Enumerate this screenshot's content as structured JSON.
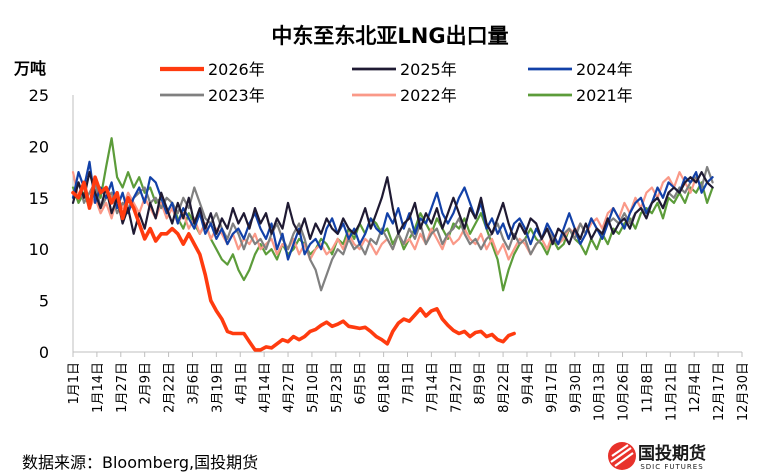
{
  "chart_data": {
    "type": "line",
    "title": "中东至东北亚LNG出口量",
    "ylabel": "万吨",
    "ylim": [
      0,
      25
    ],
    "yticks": [
      0,
      5,
      10,
      15,
      20,
      25
    ],
    "grid": false,
    "legend_position": "top",
    "x_ticks": [
      "1月1日",
      "1月14日",
      "1月27日",
      "2月9日",
      "2月22日",
      "3月6日",
      "3月19日",
      "4月1日",
      "4月14日",
      "4月27日",
      "5月10日",
      "5月23日",
      "6月5日",
      "6月18日",
      "7月1日",
      "7月14日",
      "7月27日",
      "8月9日",
      "8月22日",
      "9月4日",
      "9月17日",
      "9月30日",
      "10月13日",
      "10月26日",
      "11月8日",
      "11月21日",
      "12月4日",
      "12月17日",
      "12月30日"
    ],
    "series": [
      {
        "name": "2026年",
        "color": "#ff3b0f",
        "width": 3.6,
        "x_start_day": 0,
        "x_step_days": 3,
        "values": [
          15.5,
          15,
          16.5,
          14,
          17,
          15.5,
          16,
          14.5,
          15.5,
          13,
          15,
          14,
          12.5,
          11,
          12,
          10.8,
          11.5,
          11.5,
          12,
          11.5,
          10.5,
          11.5,
          10.5,
          9.5,
          7.5,
          5,
          4,
          3.2,
          2,
          1.8,
          1.8,
          1.8,
          1,
          0.2,
          0.2,
          0.5,
          0.4,
          0.8,
          1.2,
          1,
          1.5,
          1.2,
          1.5,
          2,
          2.2,
          2.6,
          2.9,
          2.5,
          2.7,
          3,
          2.5,
          2.4,
          2.3,
          2.4,
          2,
          1.5,
          1.2,
          0.8,
          2,
          2.8,
          3.2,
          3,
          3.6,
          4.2,
          3.5,
          4,
          4.2,
          3.2,
          2.6,
          2.1,
          1.8,
          2,
          1.5,
          1.9,
          2,
          1.5,
          1.7,
          1.2,
          1,
          1.6,
          1.8
        ]
      },
      {
        "name": "2025年",
        "color": "#1f1a33",
        "width": 2.2,
        "x_start_day": 0,
        "x_step_days": 3,
        "values": [
          14.5,
          16.5,
          15,
          17.5,
          15.5,
          14,
          16,
          13.5,
          15,
          12.5,
          14,
          11.5,
          13.5,
          12,
          14.5,
          13,
          15.5,
          14,
          12.5,
          14.5,
          13,
          15,
          12.5,
          14,
          12,
          13.5,
          11.5,
          13,
          12,
          14,
          12.5,
          13.5,
          12,
          14,
          12.5,
          13.5,
          11.5,
          13,
          12,
          14.5,
          12.5,
          11.5,
          13,
          11,
          12.5,
          11.5,
          13,
          12,
          11.5,
          13,
          12,
          11.5,
          12.5,
          14,
          12,
          13.5,
          15,
          17,
          14,
          11.5,
          12.5,
          13,
          14.5,
          12,
          13.5,
          12.5,
          14,
          12,
          13.5,
          15,
          13.5,
          12,
          14,
          13,
          15,
          12.5,
          11.5,
          13,
          14.5,
          12.5,
          11,
          12.5,
          11.5,
          13,
          12.5,
          11,
          12,
          10.5,
          12,
          11.5,
          10.5,
          12,
          11,
          12.5,
          11,
          12,
          11.5,
          13,
          11.5,
          12.5,
          13,
          12,
          13.5,
          14,
          13,
          14.5,
          15,
          14,
          15.5,
          16,
          15.5,
          16.5,
          17,
          16.5,
          17.5,
          16.5,
          16
        ]
      },
      {
        "name": "2024年",
        "color": "#1241a8",
        "width": 2.2,
        "x_start_day": 0,
        "x_step_days": 3,
        "values": [
          15,
          17.5,
          16,
          18.5,
          14.5,
          16,
          15,
          16.5,
          14,
          15.5,
          13.5,
          15,
          16,
          14.5,
          17,
          16.5,
          15,
          13.5,
          14.5,
          12.5,
          14,
          13,
          12,
          13.5,
          11.5,
          12.5,
          11,
          12,
          10.5,
          11.5,
          12,
          11,
          12.5,
          13.5,
          12,
          11,
          12.5,
          10,
          11.5,
          9,
          10.5,
          12,
          9.5,
          10.5,
          11,
          10,
          12,
          13,
          11.5,
          12.5,
          11,
          12,
          10.5,
          11.5,
          13,
          12,
          11.5,
          13.5,
          12.5,
          14,
          12,
          13.5,
          11.5,
          13,
          12.5,
          14,
          15.5,
          13.5,
          12.5,
          13.5,
          15,
          16,
          14.5,
          13,
          14.5,
          12,
          13,
          11.5,
          12.5,
          11,
          12.5,
          13,
          12,
          10.5,
          12,
          11,
          12.5,
          11.5,
          10.5,
          12,
          13.5,
          12,
          10.5,
          11.5,
          13,
          12,
          11,
          12.5,
          14,
          13,
          12,
          13.5,
          14.5,
          15,
          13.5,
          14.5,
          16,
          15,
          16.5,
          16,
          15.5,
          17,
          16.5,
          17.5,
          15.5,
          16.5,
          17
        ]
      },
      {
        "name": "2023年",
        "color": "#808080",
        "width": 2.2,
        "x_start_day": 0,
        "x_step_days": 3,
        "values": [
          15,
          16.5,
          14.5,
          15.5,
          16.5,
          14,
          15,
          15.5,
          13.5,
          14.5,
          14,
          15,
          15.5,
          16,
          14.5,
          15,
          14,
          15,
          14.5,
          13.5,
          15,
          14,
          16,
          14.5,
          13,
          12.5,
          13.5,
          12,
          11,
          12.5,
          11.5,
          10,
          11.5,
          10.5,
          11,
          10,
          11.5,
          12.5,
          11,
          10,
          11.5,
          12.5,
          11,
          9,
          8,
          6,
          7.5,
          9,
          10,
          9.5,
          11,
          10,
          10.5,
          9.5,
          11,
          10.5,
          12,
          11,
          10,
          11.5,
          10.5,
          12,
          11,
          12.5,
          10.5,
          11.5,
          12,
          10.5,
          11.5,
          12,
          13,
          11.5,
          10.5,
          11,
          10,
          11,
          11.5,
          12.5,
          11,
          10,
          11.5,
          10.5,
          11,
          9.5,
          10.5,
          11,
          12,
          11,
          10.5,
          11.5,
          12,
          11,
          12.5,
          11.5,
          13,
          12,
          11.5,
          12.5,
          13,
          12.5,
          13.5,
          12.5,
          13.5,
          14,
          13.5,
          14.5,
          15,
          14,
          15.5,
          15,
          16,
          15.5,
          16.5,
          17,
          16,
          18,
          16.5
        ]
      },
      {
        "name": "2022年",
        "color": "#fa9988",
        "width": 2.2,
        "x_start_day": 0,
        "x_step_days": 3,
        "values": [
          17.5,
          15,
          16,
          14,
          15,
          13.5,
          14.5,
          13,
          15,
          14,
          15.5,
          14.5,
          13.5,
          15,
          14,
          13,
          14.5,
          13,
          14,
          12.5,
          13.5,
          12,
          13,
          11.5,
          12.5,
          11,
          12,
          11.5,
          10.5,
          11.5,
          10,
          11,
          10.5,
          11.5,
          10,
          10.5,
          11,
          9.5,
          10.5,
          10,
          11,
          9.5,
          10.5,
          9,
          10,
          10.5,
          9.5,
          10,
          11,
          10,
          11.5,
          10.5,
          10,
          11,
          10.5,
          9.5,
          10.5,
          11,
          10,
          11.5,
          10.5,
          11,
          10,
          11.5,
          10.5,
          12,
          11,
          10,
          11.5,
          10.5,
          11,
          12,
          11,
          10.5,
          11.5,
          10,
          11,
          9.5,
          10.5,
          9,
          10,
          11,
          10.5,
          9.5,
          10.5,
          11,
          10,
          11.5,
          10.5,
          11,
          12,
          11.5,
          12.5,
          11.5,
          12.5,
          13,
          12,
          13.5,
          14,
          13,
          14.5,
          13.5,
          15,
          14,
          15.5,
          16,
          15,
          16.5,
          17,
          16,
          17.5,
          16.5,
          15.5,
          17,
          16
        ]
      },
      {
        "name": "2021年",
        "color": "#5c9c3a",
        "width": 2.2,
        "x_start_day": 0,
        "x_step_days": 3,
        "values": [
          16,
          14.5,
          15.5,
          14,
          16.5,
          15,
          18,
          20.8,
          17,
          16,
          17.5,
          16,
          17,
          15.5,
          16,
          14.5,
          15,
          13.5,
          14.5,
          13,
          12,
          13.5,
          12.5,
          11.5,
          12.5,
          11,
          10,
          9,
          8.5,
          9.5,
          8,
          7,
          8,
          9.5,
          10.5,
          9.5,
          10,
          9,
          10.5,
          9.5,
          10,
          11,
          10.5,
          9.5,
          10,
          11,
          10.5,
          9.5,
          11,
          10.5,
          12,
          11,
          12.5,
          11.5,
          13,
          12.5,
          11.5,
          12,
          10.5,
          11.5,
          10,
          11,
          12,
          13.5,
          12.5,
          11.5,
          13,
          12,
          11,
          12.5,
          12,
          13,
          11.5,
          12.5,
          13.5,
          12,
          10.5,
          9,
          6,
          8,
          9.5,
          10.5,
          11,
          12,
          11,
          10.5,
          9.5,
          11,
          10,
          10.5,
          12,
          11,
          10.5,
          9.5,
          11,
          10,
          11.5,
          10.5,
          12,
          11.5,
          12.5,
          13,
          12,
          13.5,
          14,
          13.5,
          14.5,
          13,
          15,
          14.5,
          15.5,
          14.5,
          16,
          15.5,
          16.5,
          14.5,
          16
        ]
      }
    ]
  },
  "source_text": "数据来源：Bloomberg,国投期货",
  "logo": {
    "name": "国投期货",
    "sub": "SDIC FUTURES",
    "color": "#e8322b"
  }
}
